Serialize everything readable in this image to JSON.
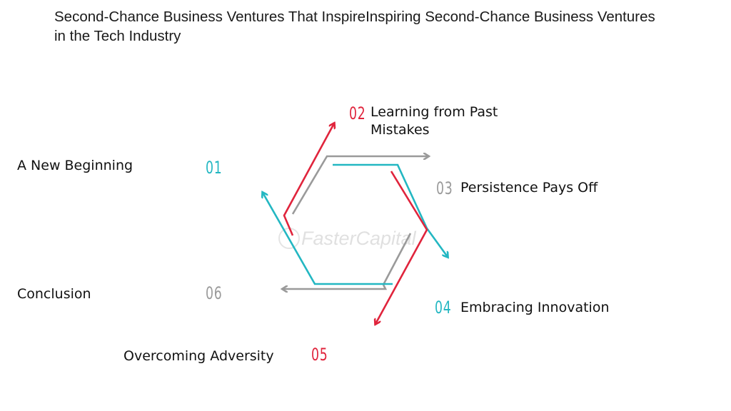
{
  "title": "Second-Chance Business Ventures That InspireInspiring Second-Chance Business Ventures in the Tech Industry",
  "steps": [
    {
      "number": "01",
      "label": "A New Beginning",
      "color": "#23b7c2"
    },
    {
      "number": "02",
      "label": "Learning from Past Mistakes",
      "color": "#e0243c"
    },
    {
      "number": "03",
      "label": "Persistence Pays Off",
      "color": "#9a9a9a"
    },
    {
      "number": "04",
      "label": "Embracing Innovation",
      "color": "#23b7c2"
    },
    {
      "number": "05",
      "label": "Overcoming Adversity",
      "color": "#e0243c"
    },
    {
      "number": "06",
      "label": "Conclusion",
      "color": "#9a9a9a"
    }
  ],
  "watermark": "FasterCapital",
  "colors": {
    "teal": "#23b7c2",
    "red": "#e0243c",
    "gray": "#9a9a9a"
  }
}
